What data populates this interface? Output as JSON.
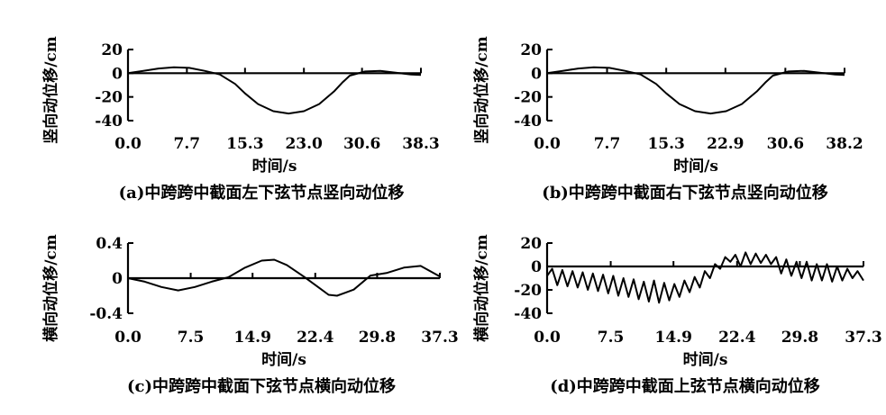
{
  "chart_data": [
    {
      "type": "line",
      "caption": "(a)中跨跨中截面左下弦节点竖向动位移",
      "xlabel": "时间/s",
      "ylabel": "竖向动位移/cm",
      "xlim": [
        0,
        38.3
      ],
      "ylim": [
        -40,
        20
      ],
      "xticks": [
        "0.0",
        "7.7",
        "15.3",
        "23.0",
        "30.6",
        "38.3"
      ],
      "yticks": [
        "20",
        "0",
        "-20",
        "-40"
      ],
      "series": [
        {
          "x": [
            0,
            2,
            4,
            6,
            8,
            10,
            12,
            14,
            15.3,
            17,
            19,
            21,
            23,
            25,
            27,
            28,
            29,
            31,
            33,
            35,
            37,
            38.3
          ],
          "y": [
            0,
            2,
            4,
            5,
            4.5,
            2,
            -1,
            -9,
            -17,
            -26,
            -32,
            -34,
            -32,
            -26,
            -15,
            -8,
            -2,
            1.5,
            2,
            0.5,
            -1,
            -1.5
          ]
        }
      ]
    },
    {
      "type": "line",
      "caption": "(b)中跨跨中截面右下弦节点竖向动位移",
      "xlabel": "时间/s",
      "ylabel": "竖向动位移/cm",
      "xlim": [
        0,
        38.2
      ],
      "ylim": [
        -40,
        20
      ],
      "xticks": [
        "0.0",
        "7.7",
        "15.3",
        "22.9",
        "30.6",
        "38.2"
      ],
      "yticks": [
        "20",
        "0",
        "-20",
        "-40"
      ],
      "series": [
        {
          "x": [
            0,
            2,
            4,
            6,
            8,
            10,
            12,
            14,
            15.3,
            17,
            19,
            21,
            23,
            25,
            27,
            28,
            29,
            31,
            33,
            35,
            37,
            38.2
          ],
          "y": [
            0,
            2,
            4,
            5,
            4.5,
            2,
            -1,
            -9,
            -17,
            -26,
            -32,
            -34,
            -32,
            -26,
            -15,
            -8,
            -2,
            1.5,
            2,
            0.5,
            -1,
            -1.5
          ]
        }
      ]
    },
    {
      "type": "line",
      "caption": "(c)中跨跨中截面下弦节点横向动位移",
      "xlabel": "时间/s",
      "ylabel": "横向动位移/cm",
      "xlim": [
        0,
        37.3
      ],
      "ylim": [
        -0.4,
        0.4
      ],
      "xticks": [
        "0.0",
        "7.5",
        "14.9",
        "22.4",
        "29.8",
        "37.3"
      ],
      "yticks": [
        "0.4",
        "0",
        "-0.4"
      ],
      "series": [
        {
          "x": [
            0,
            2,
            4,
            6,
            8,
            10,
            12,
            14,
            16,
            17.5,
            19,
            21,
            23,
            24,
            25,
            27,
            29,
            31,
            33,
            35,
            37.3
          ],
          "y": [
            0,
            -0.04,
            -0.1,
            -0.14,
            -0.1,
            -0.04,
            0.01,
            0.12,
            0.2,
            0.21,
            0.15,
            0.02,
            -0.12,
            -0.19,
            -0.2,
            -0.13,
            0.03,
            0.06,
            0.12,
            0.14,
            0.02
          ]
        }
      ]
    },
    {
      "type": "line",
      "caption": "(d)中跨跨中截面上弦节点横向动位移",
      "xlabel": "时间/s",
      "ylabel": "横向动位移/cm",
      "xlim": [
        0,
        37.3
      ],
      "ylim": [
        -40,
        20
      ],
      "xticks": [
        "0.0",
        "7.5",
        "14.9",
        "22.4",
        "29.8",
        "37.3"
      ],
      "yticks": [
        "20",
        "0",
        "-20",
        "-40"
      ],
      "series": [
        {
          "x": [
            0,
            0.6,
            1.2,
            1.8,
            2.4,
            3.0,
            3.6,
            4.2,
            4.8,
            5.4,
            6.0,
            6.6,
            7.2,
            7.8,
            8.4,
            9.0,
            9.6,
            10.2,
            10.8,
            11.4,
            12.0,
            12.6,
            13.2,
            13.8,
            14.4,
            15.0,
            15.6,
            16.2,
            16.8,
            17.4,
            18.0,
            18.6,
            19.2,
            19.8,
            20.4,
            21.0,
            21.6,
            22.2,
            22.8,
            23.4,
            24.0,
            24.6,
            25.2,
            25.8,
            26.4,
            27.0,
            27.6,
            28.2,
            28.8,
            29.4,
            30.0,
            30.6,
            31.2,
            31.8,
            32.4,
            33.0,
            33.6,
            34.2,
            34.8,
            35.4,
            36.0,
            36.6,
            37.3
          ],
          "y": [
            -8,
            -2,
            -16,
            -3,
            -17,
            -4,
            -18,
            -5,
            -20,
            -6,
            -21,
            -7,
            -23,
            -8,
            -25,
            -10,
            -26,
            -11,
            -28,
            -13,
            -30,
            -12,
            -31,
            -14,
            -29,
            -15,
            -26,
            -12,
            -22,
            -9,
            -18,
            -4,
            -10,
            2,
            -2,
            8,
            4,
            10,
            0,
            12,
            2,
            11,
            3,
            10,
            2,
            8,
            -6,
            6,
            -8,
            4,
            -10,
            4,
            -12,
            2,
            -12,
            2,
            -13,
            0,
            -12,
            -2,
            -10,
            -4,
            -12
          ]
        }
      ]
    }
  ]
}
